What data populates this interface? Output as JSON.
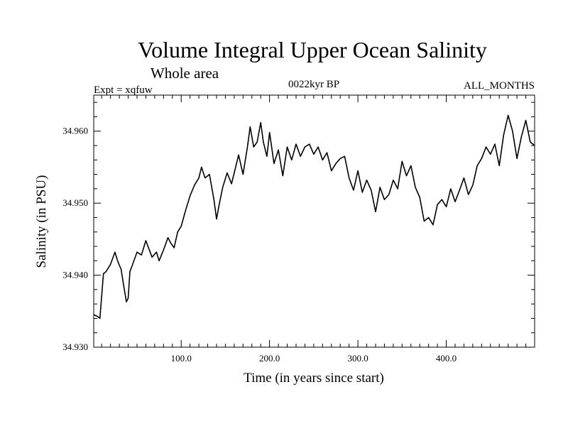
{
  "chart_data": {
    "type": "line",
    "title": "Volume Integral Upper Ocean Salinity",
    "subtitle": "Whole area",
    "expt_label": "Expt = xqfuw",
    "period_label": "0022kyr BP",
    "months_label": "ALL_MONTHS",
    "xlabel": "Time (in years since start)",
    "ylabel": "Salinity (in PSU)",
    "xlim": [
      1,
      500
    ],
    "ylim": [
      34.93,
      34.965
    ],
    "x_ticks": [
      100,
      200,
      300,
      400
    ],
    "x_tick_labels": [
      "100.0",
      "200.0",
      "300.0",
      "400.0"
    ],
    "y_ticks": [
      34.93,
      34.94,
      34.95,
      34.96
    ],
    "y_tick_labels": [
      "34.930",
      "34.940",
      "34.950",
      "34.960"
    ],
    "series": [
      {
        "name": "salinity",
        "x": [
          1,
          5,
          8,
          12,
          15,
          20,
          25,
          28,
          32,
          35,
          38,
          40,
          42,
          45,
          50,
          55,
          60,
          63,
          67,
          72,
          75,
          80,
          85,
          88,
          92,
          96,
          100,
          105,
          110,
          115,
          120,
          123,
          127,
          132,
          137,
          140,
          143,
          147,
          152,
          157,
          160,
          165,
          170,
          175,
          178,
          182,
          186,
          190,
          193,
          197,
          200,
          205,
          210,
          215,
          220,
          225,
          230,
          235,
          240,
          245,
          250,
          255,
          260,
          265,
          270,
          275,
          280,
          285,
          290,
          295,
          300,
          305,
          310,
          315,
          320,
          325,
          330,
          335,
          340,
          345,
          350,
          355,
          360,
          365,
          370,
          375,
          380,
          385,
          390,
          395,
          400,
          405,
          410,
          415,
          420,
          425,
          430,
          435,
          440,
          445,
          450,
          455,
          460,
          465,
          470,
          475,
          480,
          485,
          490,
          495,
          500
        ],
        "values": [
          34.9345,
          34.9343,
          34.934,
          34.9402,
          34.9405,
          34.9415,
          34.9432,
          34.942,
          34.9408,
          34.9385,
          34.9363,
          34.9368,
          34.9405,
          34.9415,
          34.9432,
          34.9428,
          34.9448,
          34.9438,
          34.9425,
          34.9432,
          34.942,
          34.9435,
          34.9452,
          34.9445,
          34.9438,
          34.946,
          34.9468,
          34.949,
          34.951,
          34.9525,
          34.9535,
          34.955,
          34.9535,
          34.954,
          34.9505,
          34.9478,
          34.9498,
          34.9522,
          34.9542,
          34.9527,
          34.9542,
          34.9567,
          34.954,
          34.9578,
          34.9606,
          34.9578,
          34.9585,
          34.9612,
          34.9585,
          34.9565,
          34.9598,
          34.9555,
          34.9574,
          34.9538,
          34.9578,
          34.956,
          34.9582,
          34.9565,
          34.9578,
          34.9582,
          34.9568,
          34.9578,
          34.956,
          34.957,
          34.9545,
          34.9555,
          34.9562,
          34.9565,
          34.9535,
          34.9518,
          34.9545,
          34.9515,
          34.9532,
          34.9518,
          34.9488,
          34.9522,
          34.9505,
          34.9512,
          34.9532,
          34.952,
          34.9558,
          34.9538,
          34.9552,
          34.9522,
          34.9508,
          34.9475,
          34.948,
          34.947,
          34.9498,
          34.9505,
          34.9495,
          34.952,
          34.9502,
          34.9518,
          34.9535,
          34.9512,
          34.9525,
          34.9552,
          34.9562,
          34.9578,
          34.9568,
          34.9582,
          34.9552,
          34.9595,
          34.9622,
          34.96,
          34.9562,
          34.9592,
          34.9615,
          34.9585,
          34.958
        ]
      }
    ]
  }
}
